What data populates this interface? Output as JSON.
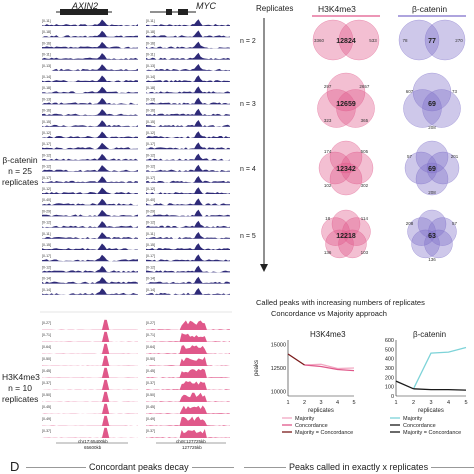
{
  "colors": {
    "navy": "#2e2a78",
    "pink": "#e0588a",
    "pink_light": "#f2a7c2",
    "purple": "#7d6ec9",
    "purple_light": "#b9aee6",
    "maroon": "#7a1a1a",
    "teal": "#7dd3d8",
    "black": "#1a1a1a"
  },
  "tracks": {
    "gene_left": "AXIN2",
    "gene_right": "MYC",
    "bcat_label_lines": [
      "β-catenin",
      "n = 25",
      "replicates"
    ],
    "h3k_label_lines": [
      "H3K4me3",
      "n = 10",
      "replicates"
    ],
    "bcat_ranges": [
      "[0-11]",
      "[0-18]",
      "[0-16]",
      "[0-11]",
      "[0-13]",
      "[0-14]",
      "[0-18]",
      "[0-13]",
      "[0-16]",
      "[0-15]",
      "[0-12]",
      "[0-17]",
      "[0-12]",
      "[0-12]",
      "[0-17]",
      "[0-12]",
      "[0-40]",
      "[0-29]",
      "[0-12]",
      "[0-11]",
      "[0-15]",
      "[0-17]",
      "[0-12]",
      "[0-14]",
      "[0-14]"
    ],
    "h3k_ranges": [
      "[0-27]",
      "[0-71]",
      "[0-64]",
      "[0-50]",
      "[0-45]",
      "[0-37]",
      "[0-50]",
      "[0-45]",
      "[0-49]",
      "[0-37]"
    ],
    "coord_left_chr": "chr17:65400kb",
    "coord_left_size": "65600kb",
    "coord_right_chr": "chr8:127725kb",
    "coord_right_size": "127725kb"
  },
  "venn": {
    "header_replicates": "Replicates",
    "header_h3k": "H3K4me3",
    "header_bcat": "β-catenin",
    "rows": [
      {
        "n": "n = 2",
        "h3k_center": "12824",
        "h3k_side": [
          "3360",
          "533"
        ],
        "bcat_center": "77",
        "bcat_side": [
          "78",
          "270"
        ]
      },
      {
        "n": "n = 3",
        "h3k_center": "12659",
        "h3k_side": [
          "2657",
          "365",
          "323",
          "297"
        ],
        "bcat_center": "69",
        "bcat_side": [
          "73",
          "208",
          "607"
        ]
      },
      {
        "n": "n = 4",
        "h3k_center": "12342",
        "h3k_side": [
          "505",
          "302",
          "102",
          "174"
        ],
        "bcat_center": "69",
        "bcat_side": [
          "201",
          "208",
          "57"
        ]
      },
      {
        "n": "n = 5",
        "h3k_center": "12218",
        "h3k_side": [
          "114",
          "103",
          "136",
          "18"
        ],
        "bcat_center": "63",
        "bcat_side": [
          "57",
          "136",
          "208"
        ]
      }
    ]
  },
  "line_charts": {
    "title_line1": "Called peaks with increasing numbers of replicates",
    "title_line2": "Concordance vs Majority approach",
    "left_title": "H3K4me3",
    "right_title": "β-catenin",
    "ylabel": "peaks",
    "xlabel": "replicates",
    "legend": [
      "Majority",
      "Concordance",
      "Majority = Concordance"
    ]
  },
  "chart_data": [
    {
      "type": "line",
      "title": "H3K4me3",
      "xlabel": "replicates",
      "ylabel": "peaks",
      "x": [
        1,
        2,
        3,
        4,
        5
      ],
      "xticks": [
        "1",
        "2",
        "3",
        "4",
        "5"
      ],
      "yticks": [
        "10000",
        "12500",
        "15000"
      ],
      "ylim": [
        9500,
        15500
      ],
      "series": [
        {
          "name": "Majority",
          "values": [
            null,
            12824,
            12900,
            12450,
            12500
          ],
          "color": "#f2a7c2"
        },
        {
          "name": "Concordance",
          "values": [
            null,
            12824,
            12659,
            12342,
            12218
          ],
          "color": "#e0588a"
        },
        {
          "name": "Majority = Concordance",
          "values": [
            14000,
            12824,
            null,
            null,
            null
          ],
          "color": "#7a1a1a"
        }
      ]
    },
    {
      "type": "line",
      "title": "β-catenin",
      "xlabel": "replicates",
      "ylabel": "",
      "x": [
        1,
        2,
        3,
        4,
        5
      ],
      "xticks": [
        "1",
        "2",
        "3",
        "4",
        "5"
      ],
      "yticks": [
        "0",
        "100",
        "200",
        "300",
        "400",
        "500",
        "600"
      ],
      "ylim": [
        0,
        600
      ],
      "series": [
        {
          "name": "Majority",
          "values": [
            null,
            77,
            460,
            470,
            520
          ],
          "color": "#7dd3d8"
        },
        {
          "name": "Concordance",
          "values": [
            null,
            77,
            69,
            69,
            63
          ],
          "color": "#1a1a1a"
        },
        {
          "name": "Majority = Concordance",
          "values": [
            160,
            77,
            null,
            null,
            null
          ],
          "color": "#1a1a1a"
        }
      ]
    }
  ],
  "footer": {
    "panel_letter": "D",
    "left_title": "Concordant peaks decay",
    "right_title": "Peaks called in exactly x replicates"
  }
}
